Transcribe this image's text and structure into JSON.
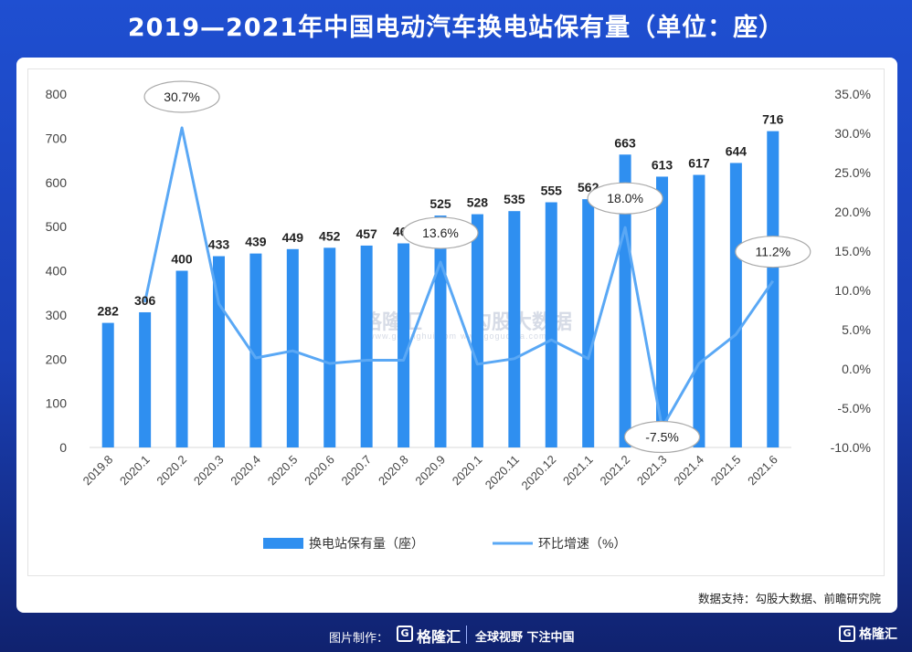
{
  "title": "2019—2021年中国电动汽车换电站保有量（单位：座）",
  "source": "数据支持：勾股大数据、前瞻研究院",
  "watermarks": {
    "brand": "格隆汇",
    "brand_sub": "www.gelonghui.com",
    "data": "勾股大数据",
    "data_sub": "www.gogudata.com"
  },
  "footer": {
    "credit": "图片制作：",
    "logo_letter": "G",
    "brand": "格隆汇",
    "slogan": "全球视野 下注中国",
    "brand_right": "格隆汇"
  },
  "chart_data": {
    "type": "bar",
    "categories": [
      "2019.8",
      "2020.1",
      "2020.2",
      "2020.3",
      "2020.4",
      "2020.5",
      "2020.6",
      "2020.7",
      "2020.8",
      "2020.9",
      "2020.1",
      "2020.11",
      "2020.12",
      "2021.1",
      "2021.2",
      "2021.3",
      "2021.4",
      "2021.5",
      "2021.6"
    ],
    "series": [
      {
        "name": "换电站保有量（座）",
        "type": "bar",
        "axis": "left",
        "color": "#2f8ff0",
        "values": [
          282,
          306,
          400,
          433,
          439,
          449,
          452,
          457,
          462,
          525,
          528,
          535,
          555,
          562,
          663,
          613,
          617,
          644,
          716
        ]
      },
      {
        "name": "环比增速（%）",
        "type": "line",
        "axis": "right",
        "color": "#5aa8f5",
        "values": [
          null,
          8.5,
          30.7,
          8.3,
          1.4,
          2.3,
          0.7,
          1.1,
          1.1,
          13.6,
          0.6,
          1.3,
          3.7,
          1.3,
          18.0,
          -7.5,
          0.7,
          4.4,
          11.2
        ]
      }
    ],
    "callouts": [
      {
        "index": 2,
        "label": "30.7%"
      },
      {
        "index": 9,
        "label": "13.6%"
      },
      {
        "index": 14,
        "label": "18.0%"
      },
      {
        "index": 15,
        "label": "-7.5%"
      },
      {
        "index": 18,
        "label": "11.2%"
      }
    ],
    "y_left": {
      "min": 0,
      "max": 800,
      "step": 100,
      "ticks": [
        "0",
        "100",
        "200",
        "300",
        "400",
        "500",
        "600",
        "700",
        "800"
      ]
    },
    "y_right": {
      "min": -10,
      "max": 35,
      "step": 5,
      "ticks": [
        "-10.0%",
        "-5.0%",
        "0.0%",
        "5.0%",
        "10.0%",
        "15.0%",
        "20.0%",
        "25.0%",
        "30.0%",
        "35.0%"
      ]
    },
    "grid": false,
    "legend_position": "bottom"
  }
}
